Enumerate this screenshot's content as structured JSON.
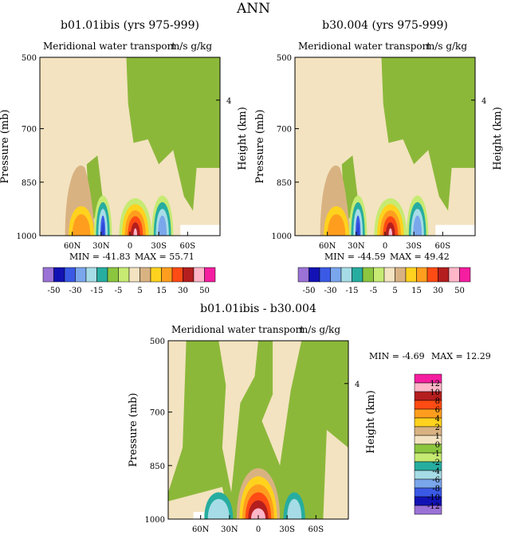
{
  "page_title": "ANN",
  "chart_data": [
    {
      "type": "heatmap",
      "title": "b01.01ibis (yrs 975-999)",
      "subtitle": "Meridional water transport",
      "units": "m/s g/kg",
      "ylabel": "Pressure (mb)",
      "y2label": "Height (km)",
      "yticks": [
        "500",
        "700",
        "850",
        "1000"
      ],
      "y2ticks": [
        "4"
      ],
      "xticks": [
        "60N",
        "30N",
        "0",
        "30S",
        "60S"
      ],
      "min_label": "MIN =",
      "min": "-41.83",
      "max_label": "MAX =",
      "max": "55.71",
      "colorbar_labels": [
        "-50",
        "-30",
        "-15",
        "-5",
        "5",
        "15",
        "30",
        "50"
      ]
    },
    {
      "type": "heatmap",
      "title": "b30.004 (yrs 975-999)",
      "subtitle": "Meridional water transport",
      "units": "m/s g/kg",
      "ylabel": "Pressure (mb)",
      "y2label": "Height (km)",
      "yticks": [
        "500",
        "700",
        "850",
        "1000"
      ],
      "y2ticks": [
        "4"
      ],
      "xticks": [
        "60N",
        "30N",
        "0",
        "30S",
        "60S"
      ],
      "min_label": "MIN =",
      "min": "-44.59",
      "max_label": "MAX =",
      "max": "49.42",
      "colorbar_labels": [
        "-50",
        "-30",
        "-15",
        "-5",
        "5",
        "15",
        "30",
        "50"
      ]
    },
    {
      "type": "heatmap",
      "title": "b01.01ibis - b30.004",
      "subtitle": "Meridional water transport",
      "units": "m/s g/kg",
      "ylabel": "Pressure (mb)",
      "y2label": "Height (km)",
      "yticks": [
        "500",
        "700",
        "850",
        "1000"
      ],
      "y2ticks": [
        "4"
      ],
      "xticks": [
        "60N",
        "30N",
        "0",
        "30S",
        "60S"
      ],
      "min_label": "MIN =",
      "min": "-4.69",
      "max_label": "MAX =",
      "max": "12.29",
      "colorbar_labels": [
        "12",
        "10",
        "8",
        "6",
        "4",
        "2",
        "1",
        "0",
        "-1",
        "-2",
        "-4",
        "-6",
        "-8",
        "-10",
        "-12"
      ]
    }
  ],
  "colors": {
    "top_scale": [
      "#9b72d6",
      "#1212b4",
      "#3a5ae6",
      "#7aa6ec",
      "#a6dce6",
      "#27ada0",
      "#8cc63f",
      "#c6ea72",
      "#f3e3c0",
      "#d9b282",
      "#ffd21e",
      "#ff9e1e",
      "#ff4b14",
      "#b41e1e",
      "#ffb6c8",
      "#f51ea0"
    ],
    "diff_scale": [
      "#f51ea0",
      "#ffb6c8",
      "#b41e1e",
      "#ff4b14",
      "#ff9e1e",
      "#ffd21e",
      "#d9b282",
      "#f3e3c0",
      "#8cc63f",
      "#c6ea72",
      "#27ada0",
      "#a6dce6",
      "#7aa6ec",
      "#3a5ae6",
      "#1212b4",
      "#9b72d6"
    ],
    "beige": "#f3e3c0",
    "green": "#8cb83a"
  }
}
